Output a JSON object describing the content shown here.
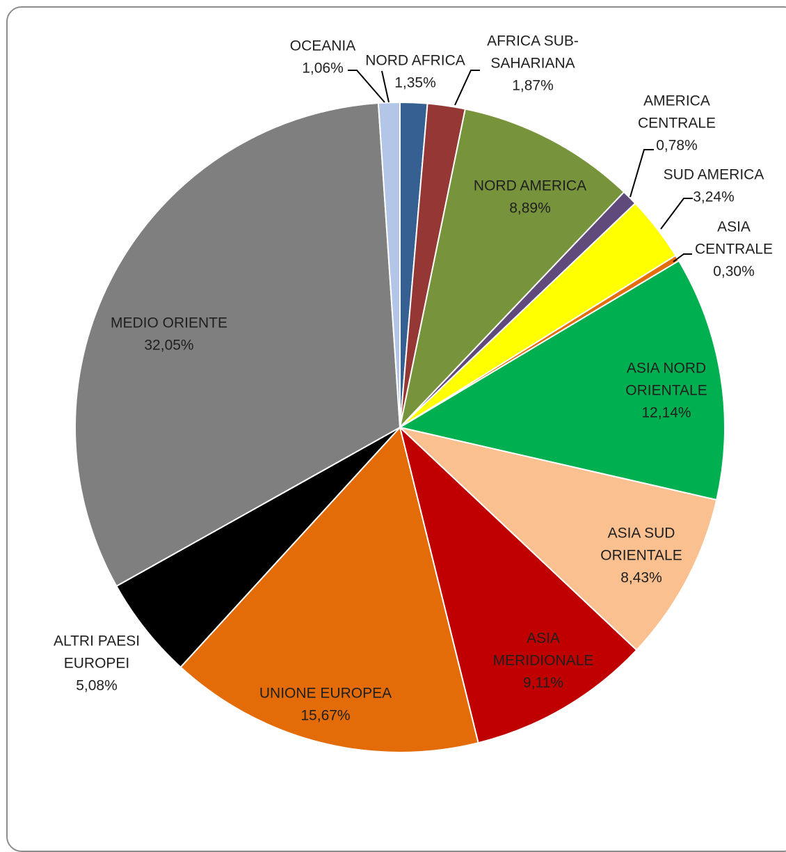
{
  "chart_data": {
    "type": "pie",
    "title": "",
    "slices": [
      {
        "name": "NORD AFRICA",
        "label_lines": [
          "NORD AFRICA",
          "1,35%"
        ],
        "value": 1.35,
        "color": "#376092"
      },
      {
        "name": "AFRICA SUB-SAHARIANA",
        "label_lines": [
          "AFRICA SUB-",
          "SAHARIANA",
          "1,87%"
        ],
        "value": 1.87,
        "color": "#953735"
      },
      {
        "name": "NORD AMERICA",
        "label_lines": [
          "NORD AMERICA",
          "8,89%"
        ],
        "value": 8.89,
        "color": "#77933C"
      },
      {
        "name": "AMERICA CENTRALE",
        "label_lines": [
          "AMERICA",
          "CENTRALE",
          "0,78%"
        ],
        "value": 0.78,
        "color": "#604A7B"
      },
      {
        "name": "SUD AMERICA",
        "label_lines": [
          "SUD AMERICA",
          "3,24%"
        ],
        "value": 3.24,
        "color": "#FFFF00"
      },
      {
        "name": "ASIA CENTRALE",
        "label_lines": [
          "ASIA",
          "CENTRALE",
          "0,30%"
        ],
        "value": 0.3,
        "color": "#E46C0A"
      },
      {
        "name": "ASIA NORD ORIENTALE",
        "label_lines": [
          "ASIA NORD",
          "ORIENTALE",
          "12,14%"
        ],
        "value": 12.14,
        "color": "#00B050"
      },
      {
        "name": "ASIA SUD ORIENTALE",
        "label_lines": [
          "ASIA SUD",
          "ORIENTALE",
          "8,43%"
        ],
        "value": 8.43,
        "color": "#FAC090"
      },
      {
        "name": "ASIA MERIDIONALE",
        "label_lines": [
          "ASIA",
          "MERIDIONALE",
          "9,11%"
        ],
        "value": 9.11,
        "color": "#C00000"
      },
      {
        "name": "UNIONE EUROPEA",
        "label_lines": [
          "UNIONE EUROPEA",
          "15,67%"
        ],
        "value": 15.67,
        "color": "#E36C09"
      },
      {
        "name": "ALTRI PAESI EUROPEI",
        "label_lines": [
          "ALTRI PAESI",
          "EUROPEI",
          "5,08%"
        ],
        "value": 5.08,
        "color": "#000000"
      },
      {
        "name": "MEDIO ORIENTE",
        "label_lines": [
          "MEDIO ORIENTE",
          "32,05%"
        ],
        "value": 32.05,
        "color": "#7F7F7F"
      },
      {
        "name": "OCEANIA",
        "label_lines": [
          "OCEANIA",
          "1,06%"
        ],
        "value": 1.06,
        "color": "#B3C6E7"
      }
    ]
  }
}
